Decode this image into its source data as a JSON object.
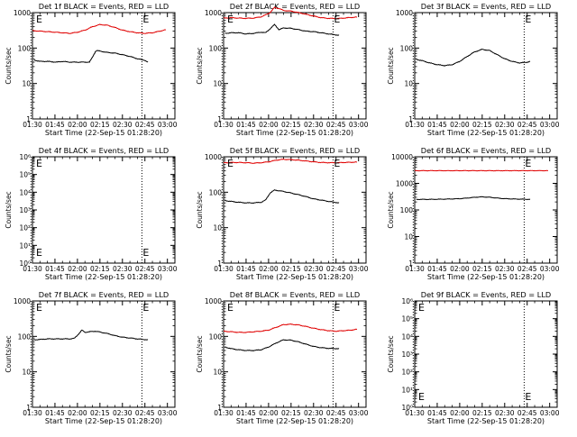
{
  "figure": {
    "x_tick_labels": [
      "01:30",
      "01:45",
      "02:00",
      "02:15",
      "02:30",
      "02:45",
      "03:00"
    ],
    "x_axis_label": "Start Time (22-Sep-15 01:28:20)",
    "y_axis_label": "Counts/sec",
    "marker_label": "E",
    "colors": {
      "events": "#000000",
      "lld": "#e00000",
      "axes": "#000000",
      "background": "#ffffff"
    }
  },
  "chart_data": [
    {
      "title": "Det 1f BLACK = Events, RED = LLD",
      "type": "line",
      "yscale": "log",
      "ylim": [
        1,
        1000
      ],
      "y_tick_labels": [
        "1",
        "10",
        "100",
        "1000"
      ],
      "vlines_minutes": [
        89,
        163
      ],
      "markers": [
        "top-left",
        "top-right"
      ],
      "series": [
        {
          "name": "Events",
          "color": "#000000",
          "x_minutes": [
            91,
            95,
            100,
            106,
            110,
            115,
            120,
            125,
            128,
            130,
            132,
            133,
            135,
            140,
            145,
            150,
            155,
            160,
            165,
            167
          ],
          "values": [
            46,
            42,
            42,
            40,
            42,
            40,
            40,
            40,
            40,
            55,
            80,
            85,
            82,
            75,
            72,
            65,
            58,
            50,
            45,
            40
          ]
        },
        {
          "name": "LLD",
          "color": "#e00000",
          "x_minutes": [
            90,
            95,
            100,
            105,
            110,
            115,
            120,
            125,
            130,
            135,
            140,
            145,
            150,
            155,
            160,
            165,
            170,
            175,
            179
          ],
          "values": [
            310,
            300,
            290,
            280,
            270,
            260,
            280,
            320,
            400,
            460,
            440,
            380,
            320,
            290,
            270,
            260,
            270,
            300,
            330
          ]
        }
      ]
    },
    {
      "title": "Det 2f BLACK = Events, RED = LLD",
      "type": "line",
      "yscale": "log",
      "ylim": [
        1,
        1000
      ],
      "y_tick_labels": [
        "1",
        "10",
        "100",
        "1000"
      ],
      "vlines_minutes": [
        89,
        163
      ],
      "markers": [
        "top-left",
        "top-right"
      ],
      "series": [
        {
          "name": "Events",
          "color": "#000000",
          "x_minutes": [
            91,
            95,
            100,
            105,
            110,
            115,
            118,
            121,
            124,
            127,
            130,
            135,
            140,
            145,
            150,
            155,
            160,
            167
          ],
          "values": [
            260,
            270,
            270,
            250,
            260,
            280,
            270,
            350,
            460,
            330,
            370,
            360,
            330,
            300,
            290,
            270,
            250,
            230
          ]
        },
        {
          "name": "LLD",
          "color": "#e00000",
          "x_minutes": [
            90,
            95,
            100,
            105,
            110,
            115,
            118,
            121,
            124,
            127,
            130,
            135,
            140,
            145,
            150,
            155,
            160,
            165,
            170,
            175,
            179
          ],
          "values": [
            700,
            720,
            700,
            690,
            700,
            760,
            860,
            1000,
            1400,
            1300,
            1150,
            1100,
            1000,
            900,
            800,
            720,
            690,
            680,
            700,
            730,
            750
          ]
        }
      ]
    },
    {
      "title": "Det 3f BLACK = Events, RED = LLD",
      "type": "line",
      "yscale": "log",
      "ylim": [
        1,
        1000
      ],
      "y_tick_labels": [
        "1",
        "10",
        "100",
        "1000"
      ],
      "vlines_minutes": [
        89,
        163
      ],
      "markers": [
        "top-right"
      ],
      "series": [
        {
          "name": "Events",
          "color": "#000000",
          "x_minutes": [
            91,
            95,
            100,
            105,
            110,
            115,
            120,
            125,
            130,
            135,
            140,
            145,
            150,
            155,
            160,
            165,
            167
          ],
          "values": [
            48,
            44,
            38,
            34,
            32,
            34,
            42,
            58,
            78,
            92,
            85,
            65,
            50,
            42,
            38,
            40,
            42
          ]
        }
      ]
    },
    {
      "title": "Det 4f BLACK = Events, RED = LLD",
      "type": "line",
      "yscale": "log",
      "ylim": [
        1,
        1000000
      ],
      "y_tick_labels": [
        "10⁰",
        "10¹",
        "10²",
        "10³",
        "10⁴",
        "10⁵",
        "10⁶"
      ],
      "vlines_minutes": [
        89,
        163
      ],
      "markers": [
        "top-left",
        "bottom-left",
        "bottom-right"
      ],
      "series": []
    },
    {
      "title": "Det 5f BLACK = Events, RED = LLD",
      "type": "line",
      "yscale": "log",
      "ylim": [
        1,
        1000
      ],
      "y_tick_labels": [
        "1",
        "10",
        "100",
        "1000"
      ],
      "vlines_minutes": [
        89,
        163
      ],
      "markers": [
        "top-left",
        "top-right"
      ],
      "series": [
        {
          "name": "Events",
          "color": "#000000",
          "x_minutes": [
            91,
            95,
            100,
            105,
            110,
            115,
            118,
            121,
            124,
            127,
            130,
            135,
            140,
            145,
            150,
            155,
            160,
            167
          ],
          "values": [
            58,
            55,
            52,
            50,
            50,
            52,
            60,
            95,
            115,
            110,
            105,
            95,
            85,
            75,
            65,
            60,
            55,
            50
          ]
        },
        {
          "name": "LLD",
          "color": "#e00000",
          "x_minutes": [
            90,
            95,
            100,
            105,
            110,
            115,
            120,
            125,
            130,
            135,
            140,
            145,
            150,
            155,
            160,
            165,
            170,
            175,
            179
          ],
          "values": [
            680,
            690,
            690,
            680,
            660,
            680,
            720,
            800,
            850,
            830,
            800,
            760,
            720,
            690,
            680,
            680,
            690,
            700,
            710
          ]
        }
      ]
    },
    {
      "title": "Det 6f BLACK = Events, RED = LLD",
      "type": "line",
      "yscale": "log",
      "ylim": [
        1,
        10000
      ],
      "y_tick_labels": [
        "1",
        "10",
        "100",
        "1000",
        "10000"
      ],
      "vlines_minutes": [
        89,
        163
      ],
      "markers": [
        "top-right"
      ],
      "series": [
        {
          "name": "Events",
          "color": "#000000",
          "x_minutes": [
            91,
            100,
            110,
            120,
            125,
            130,
            135,
            140,
            145,
            150,
            160,
            167
          ],
          "values": [
            250,
            250,
            255,
            265,
            280,
            300,
            310,
            300,
            280,
            265,
            255,
            250
          ]
        },
        {
          "name": "LLD",
          "color": "#e00000",
          "x_minutes": [
            90,
            100,
            110,
            120,
            130,
            140,
            150,
            160,
            170,
            179
          ],
          "values": [
            3000,
            3000,
            3000,
            3000,
            3000,
            3000,
            3000,
            3000,
            3000,
            3000
          ]
        }
      ]
    },
    {
      "title": "Det 7f BLACK = Events, RED = LLD",
      "type": "line",
      "yscale": "log",
      "ylim": [
        1,
        1000
      ],
      "y_tick_labels": [
        "1",
        "10",
        "100",
        "1000"
      ],
      "vlines_minutes": [
        89,
        163
      ],
      "markers": [
        "top-left",
        "top-right"
      ],
      "series": [
        {
          "name": "Events",
          "color": "#000000",
          "x_minutes": [
            91,
            95,
            100,
            105,
            110,
            115,
            118,
            121,
            123,
            125,
            128,
            132,
            136,
            140,
            145,
            150,
            155,
            160,
            167
          ],
          "values": [
            80,
            82,
            85,
            85,
            85,
            85,
            88,
            120,
            150,
            130,
            135,
            140,
            130,
            120,
            105,
            95,
            90,
            85,
            80
          ]
        }
      ]
    },
    {
      "title": "Det 8f BLACK = Events, RED = LLD",
      "type": "line",
      "yscale": "log",
      "ylim": [
        1,
        1000
      ],
      "y_tick_labels": [
        "1",
        "10",
        "100",
        "1000"
      ],
      "vlines_minutes": [
        89,
        163
      ],
      "markers": [
        "top-left",
        "top-right"
      ],
      "series": [
        {
          "name": "Events",
          "color": "#000000",
          "x_minutes": [
            91,
            95,
            100,
            105,
            110,
            115,
            120,
            125,
            130,
            135,
            140,
            145,
            150,
            155,
            160,
            167
          ],
          "values": [
            50,
            45,
            42,
            40,
            40,
            42,
            50,
            65,
            80,
            78,
            70,
            60,
            52,
            48,
            46,
            45
          ]
        },
        {
          "name": "LLD",
          "color": "#e00000",
          "x_minutes": [
            90,
            95,
            100,
            105,
            110,
            115,
            120,
            125,
            130,
            135,
            140,
            145,
            150,
            155,
            160,
            165,
            170,
            175,
            179
          ],
          "values": [
            140,
            135,
            130,
            130,
            135,
            140,
            150,
            180,
            215,
            220,
            210,
            190,
            170,
            155,
            145,
            140,
            145,
            150,
            160
          ]
        }
      ]
    },
    {
      "title": "Det 9f BLACK = Events, RED = LLD",
      "type": "line",
      "yscale": "log",
      "ylim": [
        1,
        1000000
      ],
      "y_tick_labels": [
        "10⁰",
        "10¹",
        "10²",
        "10³",
        "10⁴",
        "10⁵",
        "10⁶"
      ],
      "vlines_minutes": [
        89,
        163
      ],
      "markers": [
        "top-left",
        "bottom-left",
        "bottom-right"
      ],
      "series": []
    }
  ]
}
